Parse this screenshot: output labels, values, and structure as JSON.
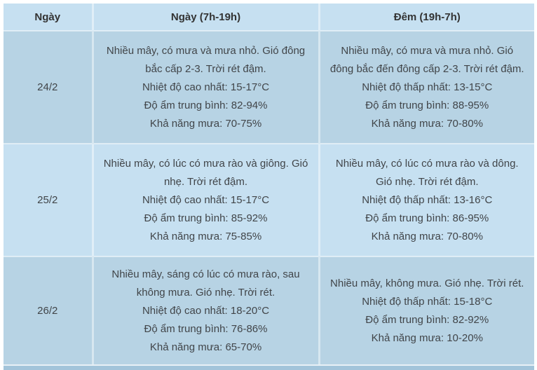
{
  "table": {
    "columns": [
      "Ngày",
      "Ngày (7h-19h)",
      "Đêm (19h-7h)"
    ],
    "rows": [
      {
        "date": "24/2",
        "day": {
          "desc": "Nhiều mây, có mưa và mưa nhỏ. Gió đông bắc cấp 2-3. Trời rét đậm.",
          "temp": "Nhiệt độ cao nhất: 15-17°C",
          "humidity": "Độ ẩm trung bình: 82-94%",
          "rain": "Khả năng mưa: 70-75%"
        },
        "night": {
          "desc": "Nhiều mây, có mưa và mưa nhỏ. Gió đông bắc đến đông cấp 2-3. Trời rét đậm.",
          "temp": "Nhiệt độ thấp nhất: 13-15°C",
          "humidity": "Độ ẩm trung bình: 88-95%",
          "rain": "Khả năng mưa: 70-80%"
        }
      },
      {
        "date": "25/2",
        "day": {
          "desc": "Nhiều mây, có lúc có mưa rào và giông. Gió nhẹ. Trời rét đậm.",
          "temp": "Nhiệt độ cao nhất: 15-17°C",
          "humidity": "Độ ẩm trung bình: 85-92%",
          "rain": "Khả năng mưa: 75-85%"
        },
        "night": {
          "desc": "Nhiều mây, có lúc có mưa rào và dông. Gió nhẹ. Trời rét đậm.",
          "temp": "Nhiệt độ thấp nhất: 13-16°C",
          "humidity": "Độ ẩm trung bình: 86-95%",
          "rain": "Khả năng mưa: 70-80%"
        }
      },
      {
        "date": "26/2",
        "day": {
          "desc": "Nhiều mây, sáng có lúc có mưa rào, sau không mưa. Gió nhẹ. Trời rét.",
          "temp": "Nhiệt độ cao nhất: 18-20°C",
          "humidity": "Độ ẩm trung bình: 76-86%",
          "rain": "Khả năng mưa: 65-70%"
        },
        "night": {
          "desc": "Nhiều mây, không mưa. Gió nhẹ. Trời rét.",
          "temp": "Nhiệt độ thấp nhất: 15-18°C",
          "humidity": "Độ ẩm trung bình: 82-92%",
          "rain": "Khả năng mưa: 10-20%"
        }
      }
    ],
    "colors": {
      "header_bg": "#c6e0f1",
      "row_light_bg": "#c6e0f1",
      "row_dark_bg": "#b7d3e4",
      "next_row_strip_bg": "#a2c4da",
      "text": "#414549"
    }
  }
}
